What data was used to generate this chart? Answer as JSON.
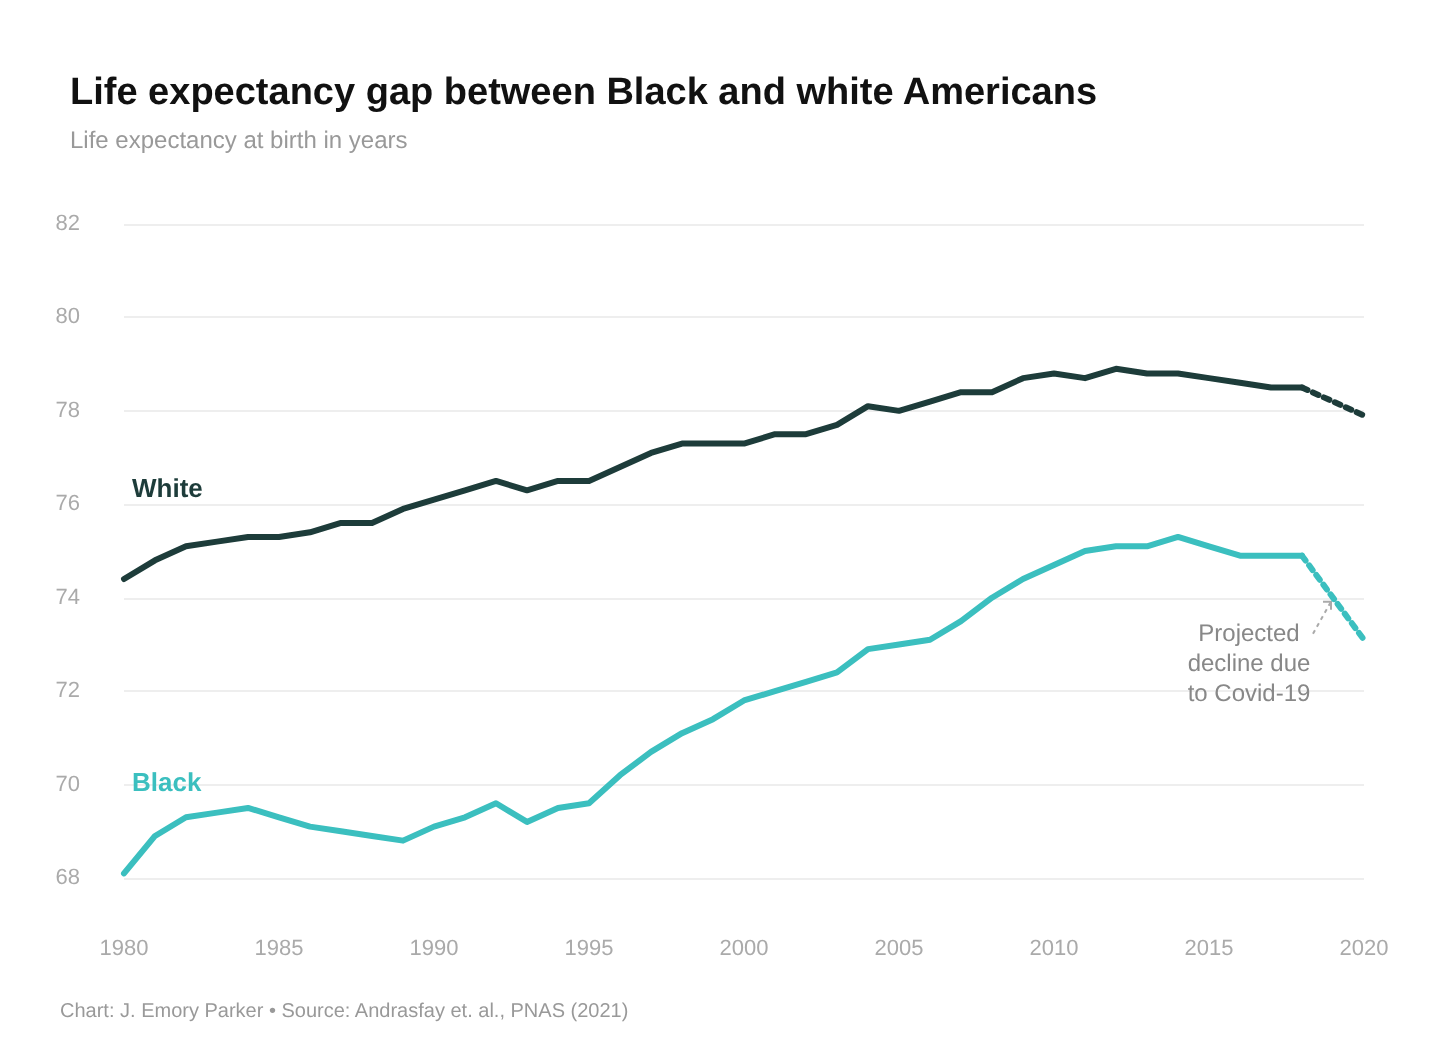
{
  "chart_data": {
    "type": "line",
    "title": "Life expectancy gap between Black and white Americans",
    "subtitle": "Life expectancy at birth in years",
    "xlim": [
      1980,
      2020
    ],
    "xticks": [
      1980,
      1985,
      1990,
      1995,
      2000,
      2005,
      2010,
      2015,
      2020
    ],
    "ylim": [
      68,
      82
    ],
    "yticks": [
      68,
      70,
      72,
      74,
      76,
      78,
      80,
      82
    ],
    "grid": "y",
    "legend": false,
    "marker": "none",
    "series": [
      {
        "name": "White",
        "color": "#1d3c3a",
        "line_style": "solid",
        "x": [
          1980,
          1981,
          1982,
          1983,
          1984,
          1985,
          1986,
          1987,
          1988,
          1989,
          1990,
          1991,
          1992,
          1993,
          1994,
          1995,
          1996,
          1997,
          1998,
          1999,
          2000,
          2001,
          2002,
          2003,
          2004,
          2005,
          2006,
          2007,
          2008,
          2009,
          2010,
          2011,
          2012,
          2013,
          2014,
          2015,
          2016,
          2017,
          2018
        ],
        "values": [
          74.4,
          74.8,
          75.1,
          75.2,
          75.3,
          75.3,
          75.4,
          75.6,
          75.6,
          75.9,
          76.1,
          76.3,
          76.5,
          76.3,
          76.5,
          76.5,
          76.8,
          77.1,
          77.3,
          77.3,
          77.3,
          77.5,
          77.5,
          77.7,
          78.1,
          78.0,
          78.2,
          78.4,
          78.4,
          78.7,
          78.8,
          78.7,
          78.9,
          78.8,
          78.8,
          78.7,
          78.6,
          78.5,
          78.5
        ]
      },
      {
        "color": "#1d3c3a",
        "line_style": "dotted",
        "x": [
          2018,
          2020
        ],
        "values": [
          78.5,
          77.9
        ]
      },
      {
        "name": "Black",
        "color": "#3bbfbf",
        "line_style": "solid",
        "x": [
          1980,
          1981,
          1982,
          1983,
          1984,
          1985,
          1986,
          1987,
          1988,
          1989,
          1990,
          1991,
          1992,
          1993,
          1994,
          1995,
          1996,
          1997,
          1998,
          1999,
          2000,
          2001,
          2002,
          2003,
          2004,
          2005,
          2006,
          2007,
          2008,
          2009,
          2010,
          2011,
          2012,
          2013,
          2014,
          2015,
          2016,
          2017,
          2018
        ],
        "values": [
          68.1,
          68.9,
          69.3,
          69.4,
          69.5,
          69.3,
          69.1,
          69.0,
          68.9,
          68.8,
          69.1,
          69.3,
          69.6,
          69.2,
          69.5,
          69.6,
          70.2,
          70.7,
          71.1,
          71.4,
          71.8,
          72.0,
          72.2,
          72.4,
          72.9,
          73.0,
          73.1,
          73.5,
          74.0,
          74.4,
          74.7,
          75.0,
          75.1,
          75.1,
          75.3,
          75.1,
          74.9,
          74.9,
          74.9
        ]
      },
      {
        "color": "#3bbfbf",
        "line_style": "dotted",
        "x": [
          2018,
          2020
        ],
        "values": [
          74.9,
          73.1
        ]
      }
    ],
    "annotations": [
      {
        "text": "Projected\ndecline due\nto Covid-19",
        "x": 2019,
        "y": 74
      },
      "Chart: J. Emory Parker • Source: Andrasfay et. al., PNAS (2021)"
    ]
  }
}
